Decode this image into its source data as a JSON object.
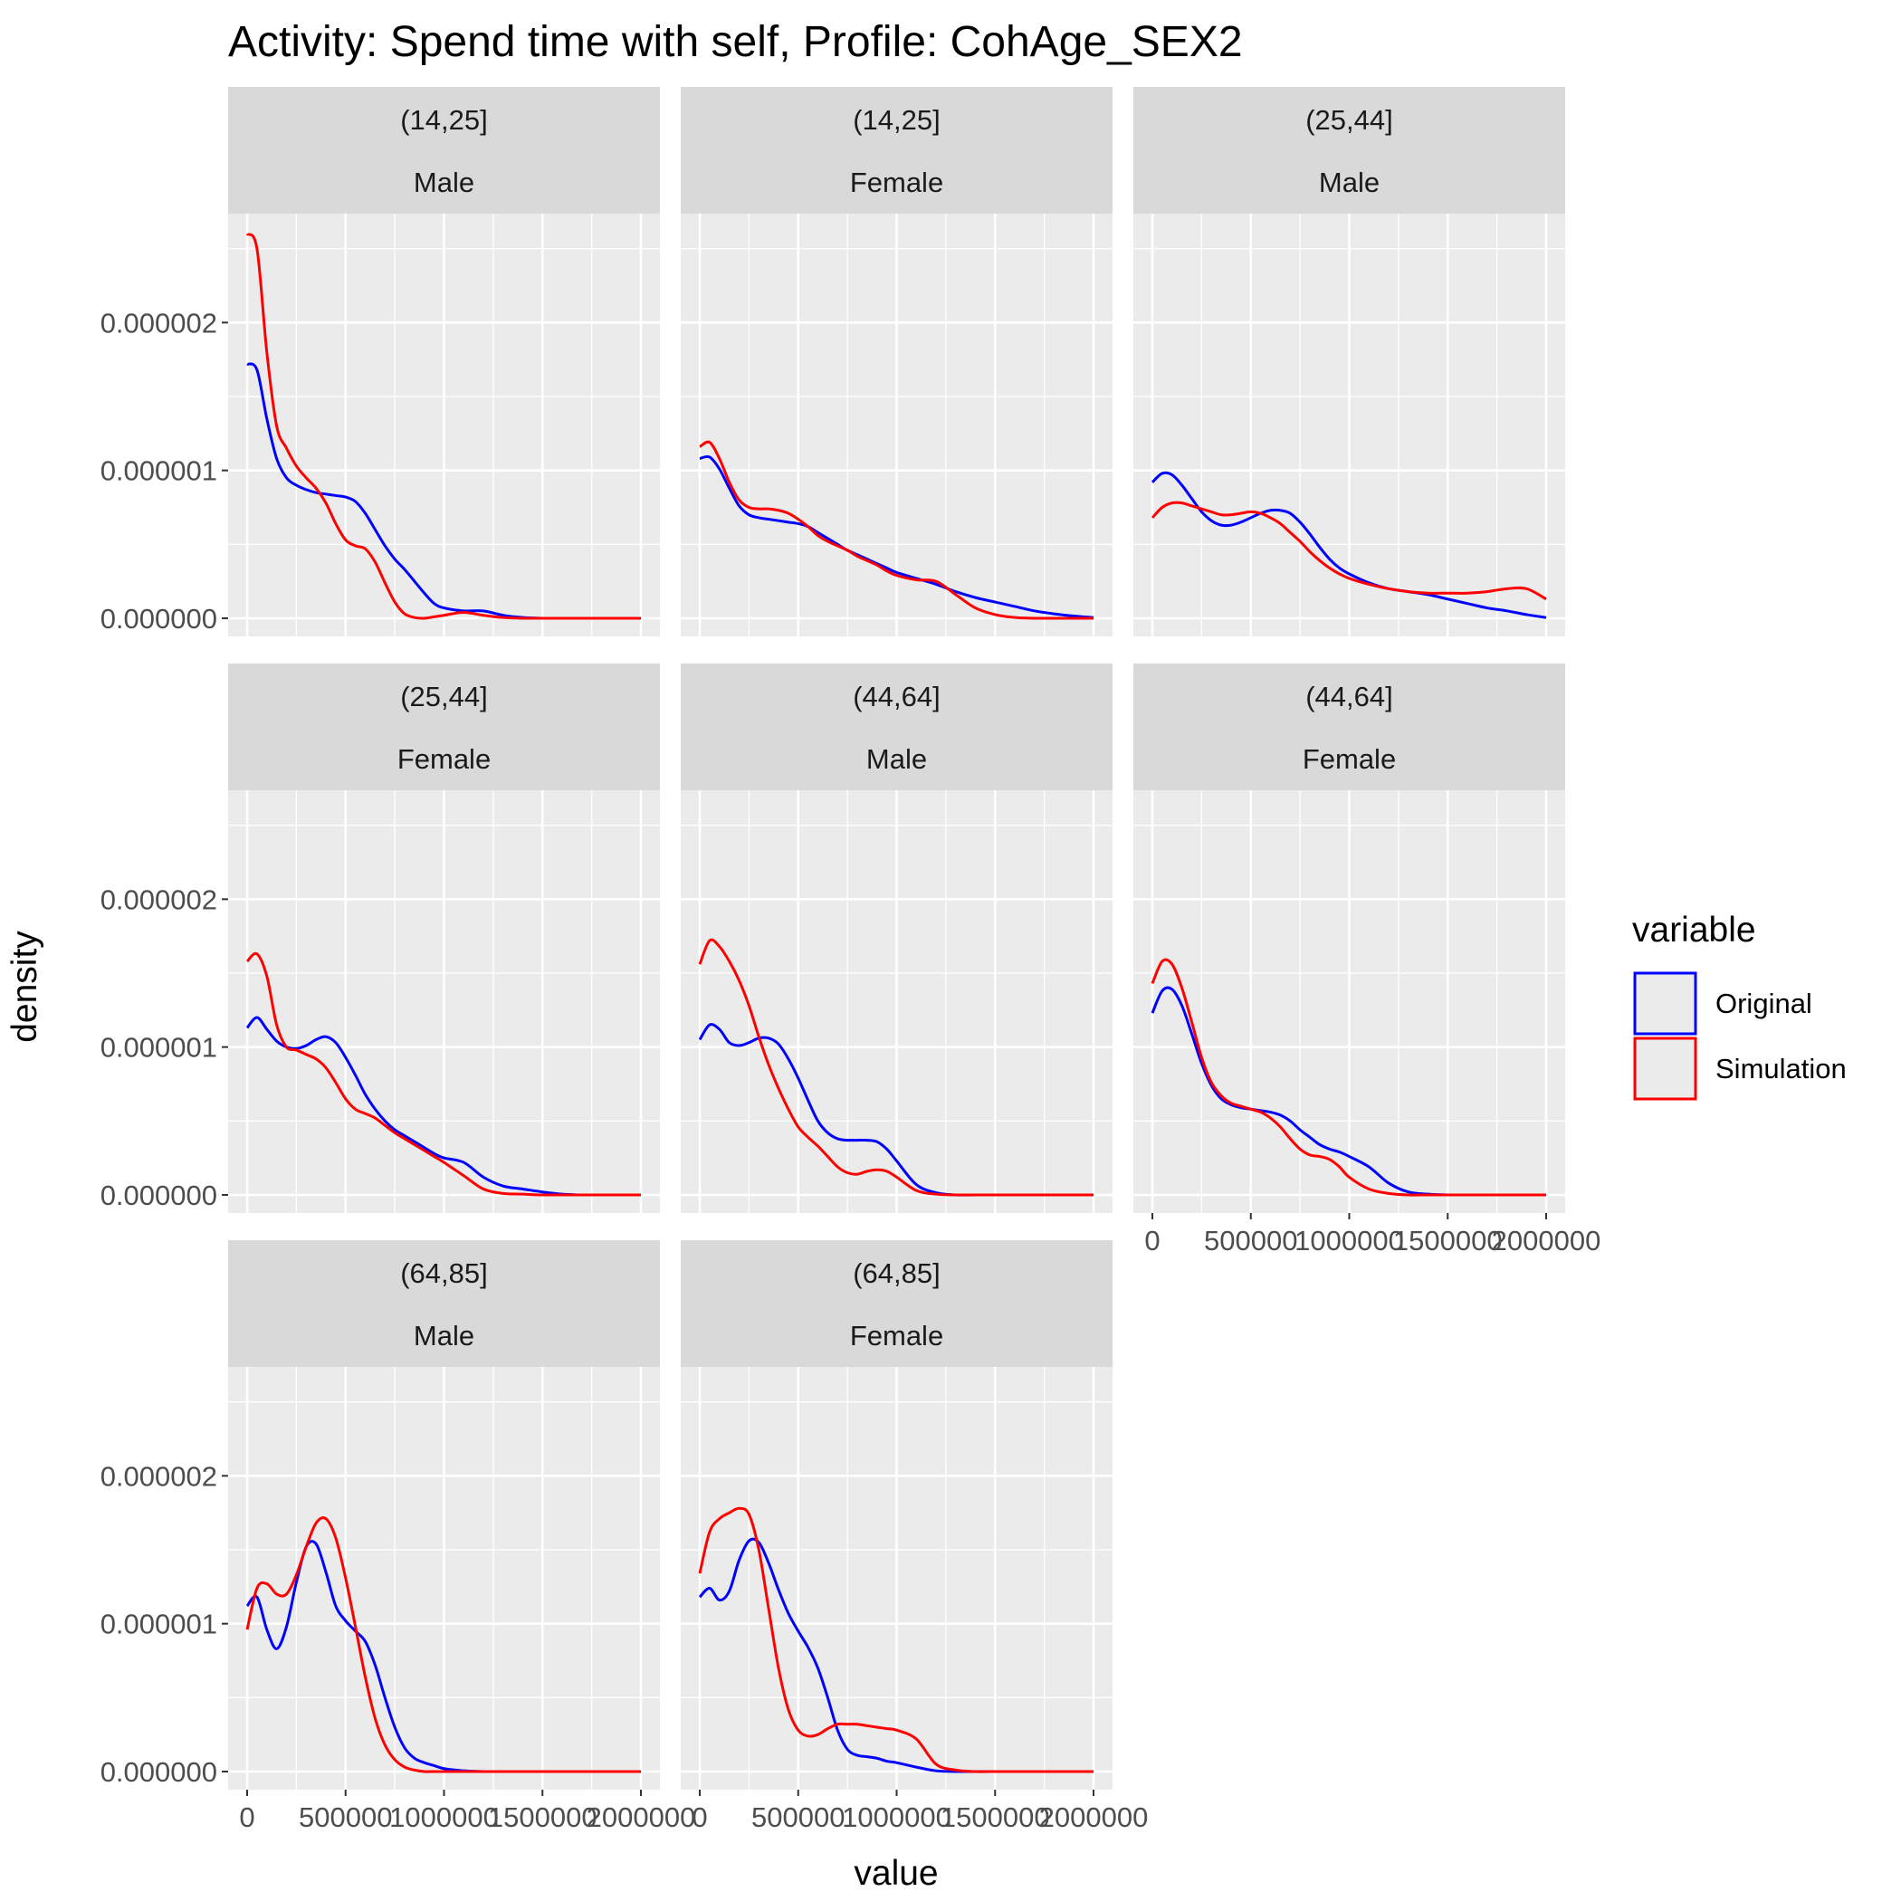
{
  "chart_data": {
    "type": "line",
    "title": "Activity: Spend time with self, Profile: CohAge_SEX2",
    "xlabel": "value",
    "ylabel": "density",
    "xlim": [
      0,
      2000000
    ],
    "ylim": [
      0,
      2.7e-06
    ],
    "x_ticks": [
      "0",
      "500000",
      "1000000",
      "1500000",
      "2000000"
    ],
    "y_ticks": [
      "0.000000",
      "0.000001",
      "0.000002"
    ],
    "grid": true,
    "legend": {
      "title": "variable",
      "placement": "right",
      "entries": [
        "Original",
        "Simulation"
      ]
    },
    "colors": {
      "Original": "#0000ff",
      "Simulation": "#ff0000"
    },
    "x": [
      0,
      50000,
      100000,
      150000,
      200000,
      250000,
      300000,
      350000,
      400000,
      450000,
      500000,
      550000,
      600000,
      650000,
      700000,
      750000,
      800000,
      850000,
      900000,
      950000,
      1000000,
      1100000,
      1200000,
      1300000,
      1400000,
      1500000,
      1600000,
      1700000,
      1800000,
      1900000,
      2000000
    ],
    "panels": [
      {
        "age": "(14,25]",
        "sex": "Male",
        "series": [
          {
            "name": "Original",
            "values": [
              1.72e-06,
              1.68e-06,
              1.35e-06,
              1.08e-06,
              9.5e-07,
              9e-07,
              8.7e-07,
              8.5e-07,
              8.4e-07,
              8.3e-07,
              8.2e-07,
              7.9e-07,
              7.1e-07,
              6e-07,
              4.9e-07,
              4e-07,
              3.3e-07,
              2.5e-07,
              1.7e-07,
              1e-07,
              7e-08,
              5e-08,
              5e-08,
              2e-08,
              5e-09,
              0,
              0,
              0,
              0,
              0,
              0
            ]
          },
          {
            "name": "Simulation",
            "values": [
              2.6e-06,
              2.5e-06,
              1.8e-06,
              1.3e-06,
              1.15e-06,
              1.03e-06,
              9.5e-07,
              8.8e-07,
              7.8e-07,
              6.4e-07,
              5.3e-07,
              4.9e-07,
              4.7e-07,
              3.8e-07,
              2.4e-07,
              1.1e-07,
              3e-08,
              5e-09,
              0,
              1e-08,
              2e-08,
              4e-08,
              2e-08,
              5e-09,
              0,
              0,
              0,
              0,
              0,
              0,
              0
            ]
          }
        ]
      },
      {
        "age": "(14,25]",
        "sex": "Female",
        "series": [
          {
            "name": "Original",
            "values": [
              1.08e-06,
              1.09e-06,
              1.01e-06,
              8.8e-07,
              7.6e-07,
              7e-07,
              6.8e-07,
              6.7e-07,
              6.6e-07,
              6.5e-07,
              6.4e-07,
              6.2e-07,
              5.8e-07,
              5.4e-07,
              5e-07,
              4.6e-07,
              4.3e-07,
              4e-07,
              3.7e-07,
              3.4e-07,
              3.1e-07,
              2.7e-07,
              2.3e-07,
              1.8e-07,
              1.4e-07,
              1.1e-07,
              8e-08,
              5e-08,
              3e-08,
              1.5e-08,
              5e-09
            ]
          },
          {
            "name": "Simulation",
            "values": [
              1.16e-06,
              1.19e-06,
              1.08e-06,
              9.2e-07,
              8e-07,
              7.5e-07,
              7.4e-07,
              7.4e-07,
              7.3e-07,
              7.1e-07,
              6.7e-07,
              6.2e-07,
              5.6e-07,
              5.2e-07,
              4.9e-07,
              4.6e-07,
              4.2e-07,
              3.9e-07,
              3.6e-07,
              3.2e-07,
              2.9e-07,
              2.6e-07,
              2.5e-07,
              1.6e-07,
              7e-08,
              2.5e-08,
              5e-09,
              0,
              0,
              0,
              0
            ]
          }
        ]
      },
      {
        "age": "(25,44]",
        "sex": "Male",
        "series": [
          {
            "name": "Original",
            "values": [
              9.2e-07,
              9.8e-07,
              9.7e-07,
              9e-07,
              8.1e-07,
              7.2e-07,
              6.6e-07,
              6.3e-07,
              6.3e-07,
              6.5e-07,
              6.8e-07,
              7.1e-07,
              7.3e-07,
              7.3e-07,
              7.1e-07,
              6.5e-07,
              5.7e-07,
              4.8e-07,
              4e-07,
              3.4e-07,
              3e-07,
              2.4e-07,
              2e-07,
              1.8e-07,
              1.6e-07,
              1.3e-07,
              1e-07,
              7e-08,
              5e-08,
              2.5e-08,
              5e-09
            ]
          },
          {
            "name": "Simulation",
            "values": [
              6.8e-07,
              7.5e-07,
              7.8e-07,
              7.8e-07,
              7.6e-07,
              7.4e-07,
              7.2e-07,
              7e-07,
              7e-07,
              7.1e-07,
              7.2e-07,
              7.1e-07,
              6.8e-07,
              6.4e-07,
              5.8e-07,
              5.2e-07,
              4.5e-07,
              3.9e-07,
              3.4e-07,
              3e-07,
              2.7e-07,
              2.3e-07,
              2e-07,
              1.8e-07,
              1.7e-07,
              1.7e-07,
              1.7e-07,
              1.8e-07,
              2e-07,
              2e-07,
              1.3e-07
            ]
          }
        ]
      },
      {
        "age": "(25,44]",
        "sex": "Female",
        "series": [
          {
            "name": "Original",
            "values": [
              1.13e-06,
              1.2e-06,
              1.12e-06,
              1.04e-06,
              1e-06,
              9.9e-07,
              1.01e-06,
              1.05e-06,
              1.07e-06,
              1.03e-06,
              9.3e-07,
              8.1e-07,
              6.8e-07,
              5.8e-07,
              5e-07,
              4.4e-07,
              4e-07,
              3.6e-07,
              3.2e-07,
              2.8e-07,
              2.5e-07,
              2.2e-07,
              1.2e-07,
              6e-08,
              4e-08,
              2e-08,
              5e-09,
              0,
              0,
              0,
              0
            ]
          },
          {
            "name": "Simulation",
            "values": [
              1.58e-06,
              1.63e-06,
              1.48e-06,
              1.15e-06,
              1e-06,
              9.8e-07,
              9.5e-07,
              9.2e-07,
              8.6e-07,
              7.6e-07,
              6.5e-07,
              5.8e-07,
              5.5e-07,
              5.2e-07,
              4.7e-07,
              4.2e-07,
              3.8e-07,
              3.4e-07,
              3e-07,
              2.6e-07,
              2.2e-07,
              1.3e-07,
              4e-08,
              1e-08,
              5e-09,
              0,
              0,
              0,
              0,
              0,
              0
            ]
          }
        ]
      },
      {
        "age": "(44,64]",
        "sex": "Male",
        "series": [
          {
            "name": "Original",
            "values": [
              1.05e-06,
              1.15e-06,
              1.12e-06,
              1.03e-06,
              1.01e-06,
              1.03e-06,
              1.06e-06,
              1.06e-06,
              1.02e-06,
              9.2e-07,
              7.9e-07,
              6.4e-07,
              5e-07,
              4.2e-07,
              3.8e-07,
              3.7e-07,
              3.7e-07,
              3.7e-07,
              3.6e-07,
              3.1e-07,
              2.3e-07,
              7e-08,
              1.5e-08,
              0,
              0,
              0,
              0,
              0,
              0,
              0,
              0
            ]
          },
          {
            "name": "Simulation",
            "values": [
              1.56e-06,
              1.72e-06,
              1.68e-06,
              1.58e-06,
              1.45e-06,
              1.28e-06,
              1.07e-06,
              8.8e-07,
              7.2e-07,
              5.8e-07,
              4.6e-07,
              3.9e-07,
              3.3e-07,
              2.6e-07,
              1.9e-07,
              1.5e-07,
              1.4e-07,
              1.6e-07,
              1.7e-07,
              1.6e-07,
              1.2e-07,
              3e-08,
              5e-09,
              0,
              0,
              0,
              0,
              0,
              0,
              0,
              0
            ]
          }
        ]
      },
      {
        "age": "(44,64]",
        "sex": "Female",
        "series": [
          {
            "name": "Original",
            "values": [
              1.23e-06,
              1.38e-06,
              1.39e-06,
              1.28e-06,
              1.09e-06,
              8.9e-07,
              7.4e-07,
              6.5e-07,
              6.1e-07,
              5.9e-07,
              5.8e-07,
              5.7e-07,
              5.6e-07,
              5.4e-07,
              5e-07,
              4.4e-07,
              3.9e-07,
              3.4e-07,
              3.1e-07,
              2.9e-07,
              2.6e-07,
              1.9e-07,
              8e-08,
              2e-08,
              5e-09,
              0,
              0,
              0,
              0,
              0,
              0
            ]
          },
          {
            "name": "Simulation",
            "values": [
              1.43e-06,
              1.58e-06,
              1.56e-06,
              1.4e-06,
              1.17e-06,
              9.3e-07,
              7.6e-07,
              6.7e-07,
              6.2e-07,
              6e-07,
              5.8e-07,
              5.6e-07,
              5.2e-07,
              4.6e-07,
              3.8e-07,
              3.1e-07,
              2.7e-07,
              2.6e-07,
              2.4e-07,
              1.9e-07,
              1.2e-07,
              4e-08,
              1e-08,
              0,
              0,
              0,
              0,
              0,
              0,
              0,
              0
            ]
          }
        ]
      },
      {
        "age": "(64,85]",
        "sex": "Male",
        "series": [
          {
            "name": "Original",
            "values": [
              1.12e-06,
              1.18e-06,
              9.6e-07,
              8.3e-07,
              9.8e-07,
              1.28e-06,
              1.52e-06,
              1.54e-06,
              1.35e-06,
              1.12e-06,
              1.02e-06,
              9.5e-07,
              8.8e-07,
              7.2e-07,
              5e-07,
              3e-07,
              1.6e-07,
              9e-08,
              6e-08,
              4e-08,
              2e-08,
              5e-09,
              0,
              0,
              0,
              0,
              0,
              0,
              0,
              0,
              0
            ]
          },
          {
            "name": "Simulation",
            "values": [
              9.6e-07,
              1.24e-06,
              1.27e-06,
              1.2e-06,
              1.2e-06,
              1.33e-06,
              1.52e-06,
              1.68e-06,
              1.71e-06,
              1.58e-06,
              1.31e-06,
              9.8e-07,
              6.4e-07,
              3.6e-07,
              1.8e-07,
              8e-08,
              3e-08,
              1e-08,
              0,
              0,
              0,
              0,
              0,
              0,
              0,
              0,
              0,
              0,
              0,
              0,
              0
            ]
          }
        ]
      },
      {
        "age": "(64,85]",
        "sex": "Female",
        "series": [
          {
            "name": "Original",
            "values": [
              1.18e-06,
              1.24e-06,
              1.16e-06,
              1.22e-06,
              1.43e-06,
              1.56e-06,
              1.55e-06,
              1.41e-06,
              1.23e-06,
              1.07e-06,
              9.5e-07,
              8.4e-07,
              7e-07,
              5e-07,
              2.8e-07,
              1.5e-07,
              1.1e-07,
              1e-07,
              9e-08,
              7e-08,
              6e-08,
              3e-08,
              5e-09,
              0,
              0,
              0,
              0,
              0,
              0,
              0,
              0
            ]
          },
          {
            "name": "Simulation",
            "values": [
              1.34e-06,
              1.62e-06,
              1.71e-06,
              1.75e-06,
              1.78e-06,
              1.74e-06,
              1.5e-06,
              1.1e-06,
              7e-07,
              4.2e-07,
              2.8e-07,
              2.4e-07,
              2.5e-07,
              2.9e-07,
              3.2e-07,
              3.2e-07,
              3.2e-07,
              3.1e-07,
              3e-07,
              2.9e-07,
              2.8e-07,
              2.2e-07,
              5e-08,
              1e-08,
              0,
              0,
              0,
              0,
              0,
              0,
              0
            ]
          }
        ]
      }
    ]
  }
}
